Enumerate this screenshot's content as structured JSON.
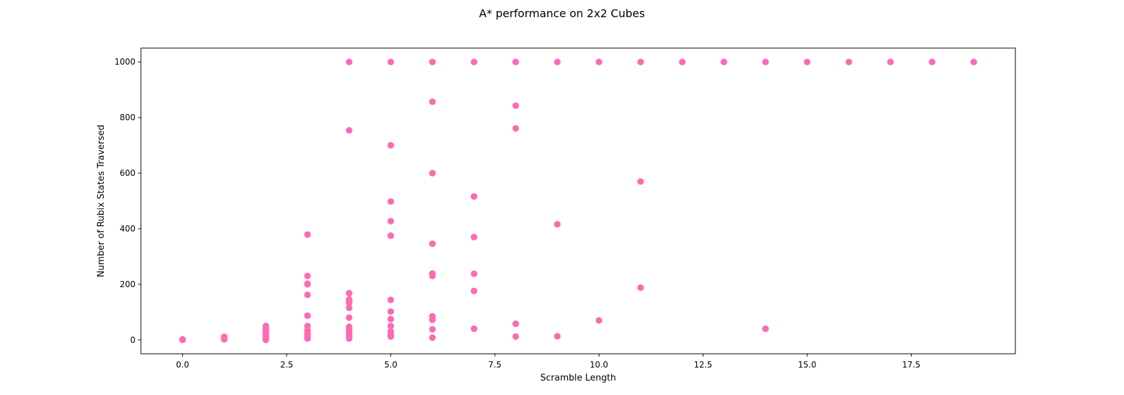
{
  "chart_data": {
    "type": "scatter",
    "title": "A* performance on 2x2 Cubes",
    "xlabel": "Scramble Length",
    "ylabel": "Number of Rubix States Traversed",
    "xlim": [
      -1.0,
      20.0
    ],
    "ylim": [
      -50,
      1050
    ],
    "xticks": [
      0.0,
      2.5,
      5.0,
      7.5,
      10.0,
      12.5,
      15.0,
      17.5
    ],
    "xtick_labels": [
      "0.0",
      "2.5",
      "5.0",
      "7.5",
      "10.0",
      "12.5",
      "15.0",
      "17.5"
    ],
    "yticks": [
      0,
      200,
      400,
      600,
      800,
      1000
    ],
    "ytick_labels": [
      "0",
      "200",
      "400",
      "600",
      "800",
      "1000"
    ],
    "grid": false,
    "marker_color": "#ff69b4",
    "points": [
      [
        0,
        0
      ],
      [
        0,
        1
      ],
      [
        0,
        2
      ],
      [
        1,
        2
      ],
      [
        1,
        5
      ],
      [
        1,
        8
      ],
      [
        1,
        11
      ],
      [
        2,
        0
      ],
      [
        2,
        6
      ],
      [
        2,
        10
      ],
      [
        2,
        14
      ],
      [
        2,
        20
      ],
      [
        2,
        30
      ],
      [
        2,
        40
      ],
      [
        2,
        50
      ],
      [
        3,
        5
      ],
      [
        3,
        10
      ],
      [
        3,
        18
      ],
      [
        3,
        25
      ],
      [
        3,
        35
      ],
      [
        3,
        50
      ],
      [
        3,
        87
      ],
      [
        3,
        162
      ],
      [
        3,
        200
      ],
      [
        3,
        202
      ],
      [
        3,
        230
      ],
      [
        3,
        379
      ],
      [
        4,
        5
      ],
      [
        4,
        12
      ],
      [
        4,
        20
      ],
      [
        4,
        30
      ],
      [
        4,
        40
      ],
      [
        4,
        47
      ],
      [
        4,
        80
      ],
      [
        4,
        115
      ],
      [
        4,
        133
      ],
      [
        4,
        140
      ],
      [
        4,
        145
      ],
      [
        4,
        168
      ],
      [
        4,
        754
      ],
      [
        4,
        1000
      ],
      [
        5,
        12
      ],
      [
        5,
        20
      ],
      [
        5,
        30
      ],
      [
        5,
        50
      ],
      [
        5,
        75
      ],
      [
        5,
        102
      ],
      [
        5,
        144
      ],
      [
        5,
        375
      ],
      [
        5,
        427
      ],
      [
        5,
        498
      ],
      [
        5,
        700
      ],
      [
        5,
        1000
      ],
      [
        6,
        8
      ],
      [
        6,
        38
      ],
      [
        6,
        72
      ],
      [
        6,
        85
      ],
      [
        6,
        230
      ],
      [
        6,
        239
      ],
      [
        6,
        346
      ],
      [
        6,
        600
      ],
      [
        6,
        857
      ],
      [
        6,
        1000
      ],
      [
        7,
        40
      ],
      [
        7,
        176
      ],
      [
        7,
        238
      ],
      [
        7,
        370
      ],
      [
        7,
        516
      ],
      [
        7,
        1000
      ],
      [
        8,
        12
      ],
      [
        8,
        58
      ],
      [
        8,
        761
      ],
      [
        8,
        843
      ],
      [
        8,
        1000
      ],
      [
        9,
        13
      ],
      [
        9,
        416
      ],
      [
        9,
        1000
      ],
      [
        10,
        70
      ],
      [
        10,
        1000
      ],
      [
        11,
        188
      ],
      [
        11,
        570
      ],
      [
        11,
        1000
      ],
      [
        12,
        1000
      ],
      [
        13,
        1000
      ],
      [
        14,
        40
      ],
      [
        14,
        1000
      ],
      [
        15,
        1000
      ],
      [
        16,
        1000
      ],
      [
        17,
        1000
      ],
      [
        18,
        1000
      ],
      [
        19,
        1000
      ]
    ]
  }
}
